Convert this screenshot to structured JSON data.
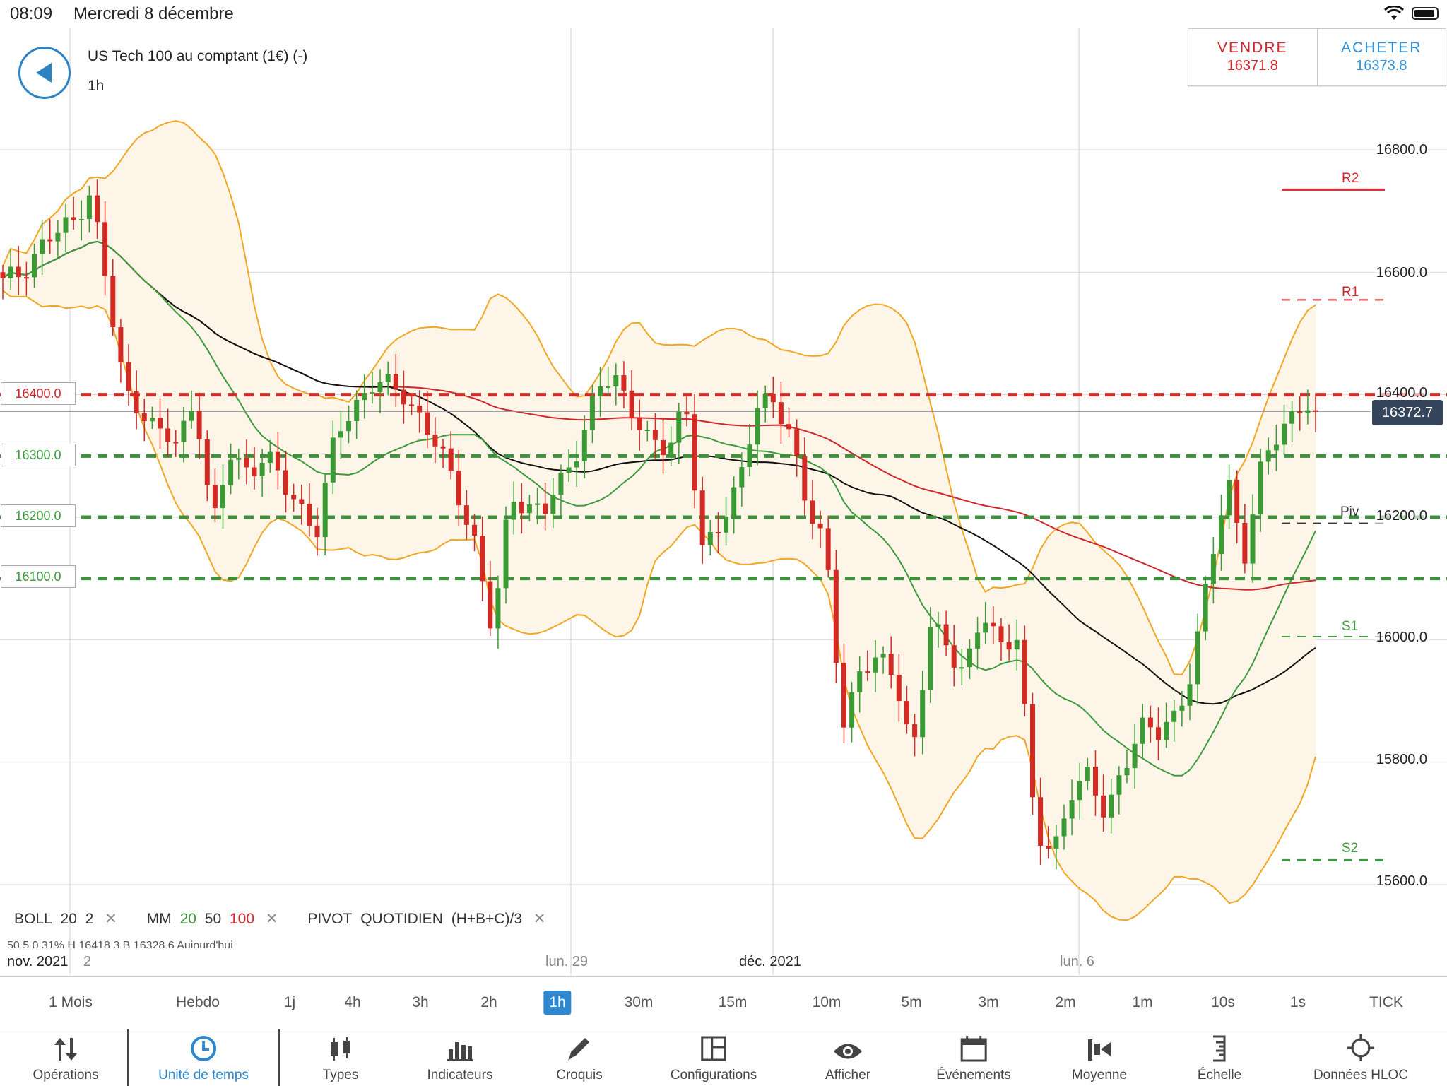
{
  "status_bar": {
    "time": "08:09",
    "date": "Mercredi 8 décembre"
  },
  "header": {
    "title": "US Tech 100 au comptant (1€) (-)",
    "timeframe": "1h",
    "sell": {
      "label": "VENDRE",
      "price": "16371.8"
    },
    "buy": {
      "label": "ACHETER",
      "price": "16373.8"
    }
  },
  "levels": [
    {
      "label": "16400.0",
      "color": "#d0262c"
    },
    {
      "label": "16300.0",
      "color": "#3d9a3d"
    },
    {
      "label": "16200.0",
      "color": "#3d9a3d"
    },
    {
      "label": "16100.0",
      "color": "#3d9a3d"
    }
  ],
  "price_axis": [
    "16800.0",
    "16600.0",
    "16400.0",
    "16200.0",
    "16000.0",
    "15800.0",
    "15600.0"
  ],
  "current_price": "16372.7",
  "pivots": {
    "r2": "R2",
    "r1": "R1",
    "piv": "Piv",
    "s1": "S1",
    "s2": "S2"
  },
  "indicators": {
    "boll": {
      "name": "BOLL",
      "p1": "20",
      "p2": "2"
    },
    "mm": {
      "name": "MM",
      "p1": "20",
      "p2": "50",
      "p3": "100"
    },
    "pivot": {
      "name": "PIVOT",
      "p1": "QUOTIDIEN",
      "p2": "(H+B+C)/3"
    },
    "info_line": "50.5      0.31%      H 16418.3   B 16328.6   Aujourd'hui"
  },
  "dates": {
    "nov": "nov. 2021",
    "nov_num": "2",
    "lun29": "lun. 29",
    "dec": "déc. 2021",
    "lun6": "lun. 6"
  },
  "timeframes": [
    "1 Mois",
    "Hebdo",
    "1j",
    "4h",
    "3h",
    "2h",
    "1h",
    "30m",
    "15m",
    "10m",
    "5m",
    "3m",
    "2m",
    "1m",
    "10s",
    "1s",
    "TICK"
  ],
  "active_timeframe": "1h",
  "toolbar": {
    "operations": "Opérations",
    "unit": "Unité de temps",
    "types": "Types",
    "indicators": "Indicateurs",
    "sketches": "Croquis",
    "configurations": "Configurations",
    "display": "Afficher",
    "events": "Événements",
    "average": "Moyenne",
    "scale": "Échelle",
    "hloc": "Données HLOC"
  },
  "chart_data": {
    "type": "candlestick",
    "y_axis": {
      "min": 15550,
      "max": 16850,
      "ticks": [
        15600,
        15800,
        16000,
        16200,
        16400,
        16600,
        16800
      ]
    },
    "x_labels": [
      "nov. 2021",
      "lun. 29",
      "déc. 2021",
      "lun. 6"
    ],
    "last_price": 16372.7,
    "horizontal_levels": [
      16400,
      16300,
      16200,
      16100
    ],
    "pivot_levels": {
      "R2": 16735,
      "R1": 16555,
      "Piv": 16190,
      "S1": 16005,
      "S2": 15640
    },
    "close_path": [
      16580,
      16600,
      16640,
      16660,
      16680,
      16740,
      16560,
      16400,
      16380,
      16330,
      16320,
      16400,
      16180,
      16300,
      16280,
      16300,
      16250,
      16220,
      16180,
      16330,
      16380,
      16420,
      16410,
      16400,
      16360,
      16300,
      16240,
      16160,
      16000,
      16240,
      16220,
      16210,
      16260,
      16330,
      16410,
      16420,
      16380,
      16320,
      16300,
      16400,
      16140,
      16180,
      16260,
      16380,
      16380,
      16340,
      16220,
      16140,
      15860,
      15960,
      15960,
      15940,
      15820,
      16020,
      15980,
      15960,
      16040,
      15980,
      16020,
      15680,
      15640,
      15760,
      15780,
      15700,
      15800,
      15860,
      15840,
      15880,
      15960,
      16120,
      16260,
      16140,
      16290,
      16340,
      16390,
      16372
    ],
    "series": [
      {
        "name": "BOLL 20 2",
        "color": "#f2a623"
      },
      {
        "name": "MM 20",
        "color": "#3d9a3d"
      },
      {
        "name": "MM 50",
        "color": "#111111"
      },
      {
        "name": "MM 100",
        "color": "#d0262c"
      }
    ]
  }
}
